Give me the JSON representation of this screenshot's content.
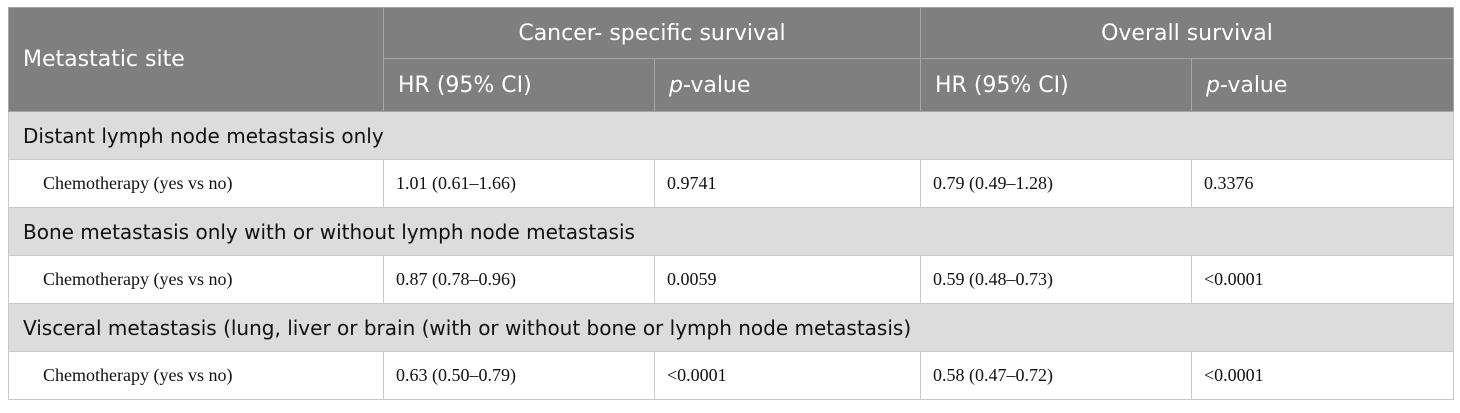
{
  "header": {
    "metastatic_site": "Metastatic site",
    "css_group": "Cancer- specific survival",
    "os_group": "Overall survival",
    "hr_label": "HR (95% CI)",
    "p_italic": "p",
    "p_suffix": "-value"
  },
  "rows": [
    {
      "group": "Distant lymph node metastasis only",
      "label": "Chemotherapy (yes vs no)",
      "css_hr": "1.01 (0.61–1.66)",
      "css_p": "0.9741",
      "os_hr": "0.79 (0.49–1.28)",
      "os_p": "0.3376"
    },
    {
      "group": "Bone metastasis only with or without lymph node metastasis",
      "label": "Chemotherapy (yes vs no)",
      "css_hr": "0.87 (0.78–0.96)",
      "css_p": "0.0059",
      "os_hr": "0.59 (0.48–0.73)",
      "os_p": "<0.0001"
    },
    {
      "group": "Visceral metastasis (lung, liver or brain (with or without bone or lymph node metastasis)",
      "label": "Chemotherapy (yes vs no)",
      "css_hr": "0.63 (0.50–0.79)",
      "css_p": "<0.0001",
      "os_hr": "0.58 (0.47–0.72)",
      "os_p": "<0.0001"
    }
  ]
}
